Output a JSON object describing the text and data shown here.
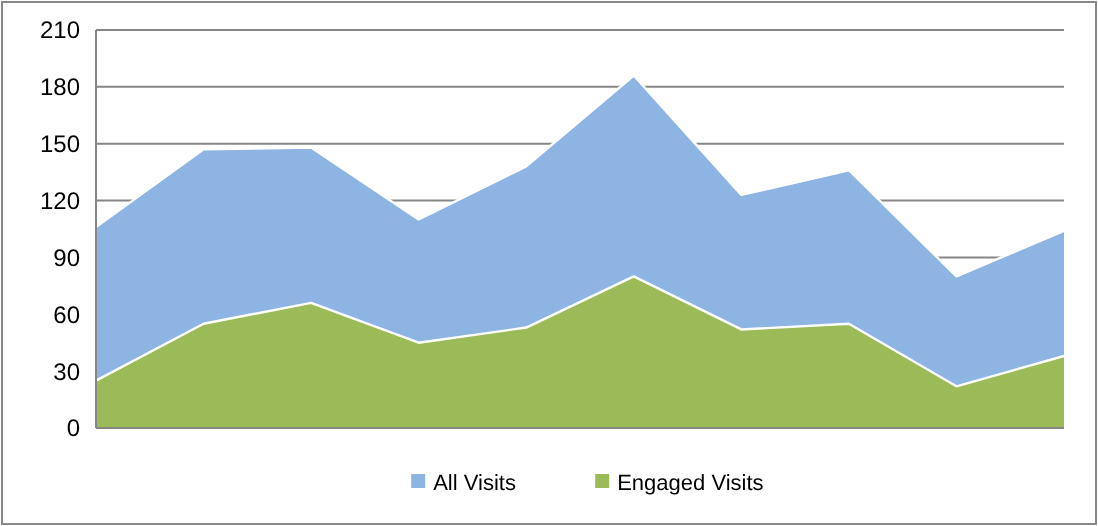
{
  "chart_data": {
    "type": "area",
    "categories": [
      null,
      null,
      null,
      null,
      null,
      null,
      null,
      null,
      null,
      null
    ],
    "series": [
      {
        "name": "All Visits",
        "color": "#8eb4e3",
        "values": [
          106,
          147,
          148,
          110,
          138,
          186,
          123,
          136,
          80,
          104
        ]
      },
      {
        "name": "Engaged Visits",
        "color": "#9bbb59",
        "values": [
          25,
          55,
          66,
          45,
          53,
          80,
          52,
          55,
          22,
          38
        ]
      }
    ],
    "ylim": [
      0,
      210
    ],
    "yticks": [
      0,
      30,
      60,
      90,
      120,
      150,
      180,
      210
    ],
    "grid": "y",
    "legend": "bottom"
  }
}
